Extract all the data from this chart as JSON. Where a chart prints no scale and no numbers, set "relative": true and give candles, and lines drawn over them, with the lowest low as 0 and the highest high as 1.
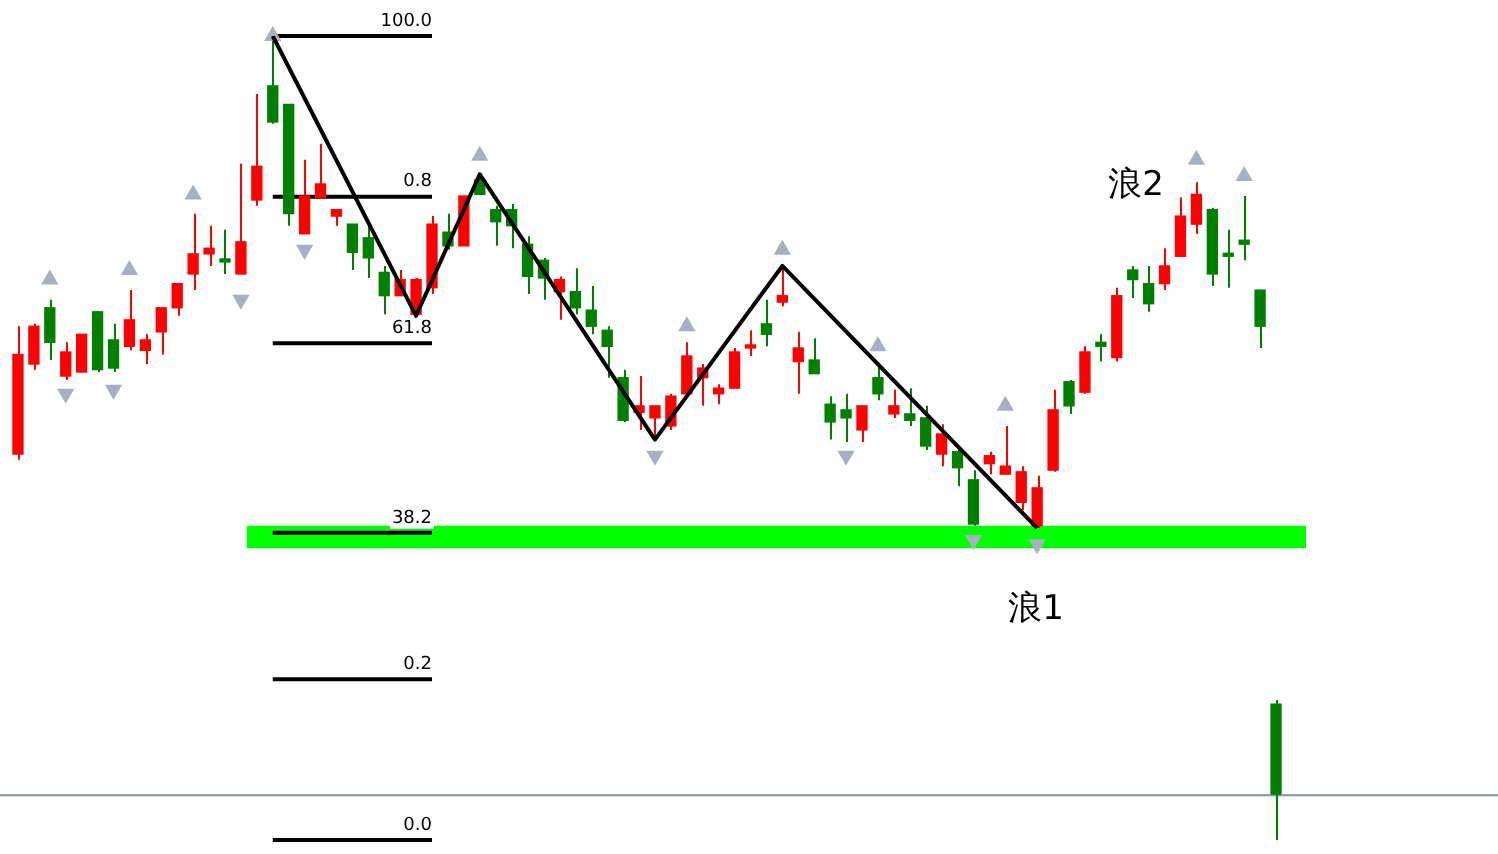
{
  "chart_data": {
    "type": "candlestick",
    "relative": true,
    "categories": [
      null,
      null,
      null,
      null,
      null,
      null,
      null,
      null,
      null,
      null,
      null,
      null,
      null,
      null,
      null,
      null,
      null,
      null,
      null,
      null,
      null,
      null,
      null,
      null,
      null,
      null,
      null,
      null,
      null,
      null,
      null,
      null,
      null,
      null,
      null,
      null,
      null,
      null,
      null,
      null,
      null,
      null,
      null,
      null,
      null,
      null,
      null,
      null,
      null,
      null,
      null,
      null,
      null,
      null,
      null,
      null,
      null,
      null,
      null,
      null,
      null,
      null,
      null,
      null,
      null,
      null,
      null,
      null,
      null,
      null,
      null,
      null,
      null,
      null,
      null,
      null,
      null,
      null,
      null,
      null
    ],
    "ohlc": [
      [
        0.48,
        0.639,
        0.473,
        0.604
      ],
      [
        0.592,
        0.642,
        0.585,
        0.639
      ],
      [
        0.662,
        0.672,
        0.597,
        0.619
      ],
      [
        0.577,
        0.619,
        0.572,
        0.607
      ],
      [
        0.582,
        0.629,
        0.582,
        0.629
      ],
      [
        0.657,
        0.657,
        0.582,
        0.585
      ],
      [
        0.622,
        0.642,
        0.582,
        0.587
      ],
      [
        0.614,
        0.684,
        0.609,
        0.647
      ],
      [
        0.609,
        0.629,
        0.592,
        0.622
      ],
      [
        0.632,
        0.662,
        0.604,
        0.662
      ],
      [
        0.662,
        0.692,
        0.652,
        0.692
      ],
      [
        0.704,
        0.779,
        0.684,
        0.729
      ],
      [
        0.729,
        0.764,
        0.714,
        0.736
      ],
      [
        0.721,
        0.759,
        0.704,
        0.719
      ],
      [
        0.704,
        0.841,
        0.704,
        0.744
      ],
      [
        0.796,
        0.928,
        0.789,
        0.838
      ],
      [
        0.938,
        1,
        0.891,
        0.893
      ],
      [
        0.915,
        0.915,
        0.764,
        0.779
      ],
      [
        0.754,
        0.846,
        0.754,
        0.801
      ],
      [
        0.799,
        0.866,
        0.799,
        0.816
      ],
      [
        0.776,
        0.784,
        0.764,
        0.784
      ],
      [
        0.766,
        0.766,
        0.709,
        0.731
      ],
      [
        0.749,
        0.764,
        0.699,
        0.724
      ],
      [
        0.706,
        0.714,
        0.654,
        0.677
      ],
      [
        0.677,
        0.709,
        0.677,
        0.697
      ],
      [
        0.654,
        0.699,
        0.652,
        0.697
      ],
      [
        0.687,
        0.776,
        0.679,
        0.766
      ],
      [
        0.756,
        0.779,
        0.734,
        0.739
      ],
      [
        0.739,
        0.801,
        0.739,
        0.801
      ],
      [
        0.821,
        0.828,
        0.803,
        0.803
      ],
      [
        0.784,
        0.789,
        0.739,
        0.769
      ],
      [
        0.784,
        0.791,
        0.736,
        0.764
      ],
      [
        0.741,
        0.751,
        0.679,
        0.701
      ],
      [
        0.721,
        0.724,
        0.672,
        0.699
      ],
      [
        0.682,
        0.701,
        0.647,
        0.697
      ],
      [
        0.682,
        0.711,
        0.654,
        0.662
      ],
      [
        0.659,
        0.689,
        0.629,
        0.639
      ],
      [
        0.634,
        0.639,
        0.575,
        0.614
      ],
      [
        0.575,
        0.585,
        0.52,
        0.522
      ],
      [
        0.532,
        0.577,
        0.51,
        0.54
      ],
      [
        0.525,
        0.54,
        0.498,
        0.54
      ],
      [
        0.515,
        0.555,
        0.51,
        0.552
      ],
      [
        0.555,
        0.619,
        0.552,
        0.602
      ],
      [
        0.575,
        0.592,
        0.54,
        0.587
      ],
      [
        0.555,
        0.567,
        0.542,
        0.562
      ],
      [
        0.562,
        0.612,
        0.562,
        0.607
      ],
      [
        0.612,
        0.634,
        0.602,
        0.614
      ],
      [
        0.642,
        0.672,
        0.614,
        0.629
      ],
      [
        0.669,
        0.714,
        0.664,
        0.677
      ],
      [
        0.595,
        0.632,
        0.555,
        0.612
      ],
      [
        0.597,
        0.624,
        0.58,
        0.58
      ],
      [
        0.542,
        0.552,
        0.498,
        0.52
      ],
      [
        0.535,
        0.555,
        0.495,
        0.525
      ],
      [
        0.51,
        0.54,
        0.495,
        0.54
      ],
      [
        0.575,
        0.59,
        0.547,
        0.555
      ],
      [
        0.53,
        0.56,
        0.525,
        0.54
      ],
      [
        0.53,
        0.562,
        0.515,
        0.522
      ],
      [
        0.525,
        0.54,
        0.485,
        0.49
      ],
      [
        0.48,
        0.517,
        0.465,
        0.505
      ],
      [
        0.483,
        0.49,
        0.44,
        0.463
      ],
      [
        0.448,
        0.46,
        0.391,
        0.393
      ],
      [
        0.468,
        0.483,
        0.455,
        0.478
      ],
      [
        0.455,
        0.515,
        0.455,
        0.465
      ],
      [
        0.42,
        0.465,
        0.41,
        0.458
      ],
      [
        0.391,
        0.453,
        0.388,
        0.438
      ],
      [
        0.46,
        0.56,
        0.458,
        0.535
      ],
      [
        0.57,
        0.572,
        0.53,
        0.54
      ],
      [
        0.557,
        0.614,
        0.555,
        0.607
      ],
      [
        0.619,
        0.629,
        0.595,
        0.614
      ],
      [
        0.6,
        0.687,
        0.595,
        0.677
      ],
      [
        0.709,
        0.714,
        0.674,
        0.697
      ],
      [
        0.692,
        0.714,
        0.657,
        0.667
      ],
      [
        0.692,
        0.736,
        0.684,
        0.714
      ],
      [
        0.726,
        0.799,
        0.726,
        0.776
      ],
      [
        0.766,
        0.818,
        0.754,
        0.803
      ],
      [
        0.784,
        0.786,
        0.689,
        0.704
      ],
      [
        0.729,
        0.759,
        0.687,
        0.726
      ],
      [
        0.746,
        0.801,
        0.721,
        0.741
      ],
      [
        0.684,
        0.684,
        0.612,
        0.639
      ],
      [
        0.169,
        0.174,
        0,
        0.057
      ]
    ],
    "colors": [
      "#ff0000",
      "#ff0000",
      "#008000",
      "#ff0000",
      "#ff0000",
      "#008000",
      "#008000",
      "#ff0000",
      "#ff0000",
      "#ff0000",
      "#ff0000",
      "#ff0000",
      "#ff0000",
      "#008000",
      "#ff0000",
      "#ff0000",
      "#008000",
      "#008000",
      "#ff0000",
      "#ff0000",
      "#ff0000",
      "#008000",
      "#008000",
      "#008000",
      "#ff0000",
      "#ff0000",
      "#ff0000",
      "#008000",
      "#ff0000",
      "#008000",
      "#008000",
      "#008000",
      "#008000",
      "#008000",
      "#ff0000",
      "#008000",
      "#008000",
      "#008000",
      "#008000",
      "#ff0000",
      "#ff0000",
      "#ff0000",
      "#ff0000",
      "#ff0000",
      "#ff0000",
      "#ff0000",
      "#ff0000",
      "#008000",
      "#ff0000",
      "#ff0000",
      "#008000",
      "#008000",
      "#008000",
      "#ff0000",
      "#008000",
      "#ff0000",
      "#008000",
      "#008000",
      "#ff0000",
      "#008000",
      "#008000",
      "#ff0000",
      "#ff0000",
      "#ff0000",
      "#ff0000",
      "#ff0000",
      "#008000",
      "#ff0000",
      "#008000",
      "#ff0000",
      "#008000",
      "#008000",
      "#ff0000",
      "#ff0000",
      "#ff0000",
      "#008000",
      "#008000",
      "#008000",
      "#008000",
      "#008000"
    ],
    "series": [
      {
        "type": "line",
        "color": "#000000",
        "values": [
          null,
          null,
          null,
          null,
          null,
          null,
          null,
          null,
          null,
          null,
          null,
          null,
          null,
          null,
          null,
          null,
          1,
          null,
          null,
          null,
          null,
          null,
          null,
          null,
          null,
          0.652,
          null,
          null,
          null,
          0.828,
          null,
          null,
          null,
          null,
          null,
          null,
          null,
          null,
          null,
          null,
          0.498,
          null,
          null,
          null,
          null,
          null,
          null,
          null,
          0.714,
          null,
          null,
          null,
          null,
          null,
          null,
          null,
          null,
          null,
          null,
          null,
          null,
          null,
          null,
          null,
          0.388,
          null,
          null,
          null,
          null,
          null,
          null,
          null,
          null,
          null,
          null,
          null,
          null,
          null,
          null,
          null
        ]
      },
      {
        "type": "scatter",
        "marker": "triangle",
        "color": "#a8b0c0",
        "values": [
          null,
          null,
          0.697,
          null,
          null,
          null,
          null,
          0.709,
          null,
          null,
          null,
          0.803,
          null,
          null,
          null,
          null,
          1,
          null,
          null,
          null,
          null,
          null,
          null,
          null,
          null,
          null,
          null,
          null,
          null,
          0.851,
          null,
          null,
          null,
          null,
          null,
          null,
          null,
          null,
          null,
          null,
          null,
          null,
          0.639,
          null,
          null,
          null,
          null,
          null,
          0.734,
          null,
          null,
          null,
          null,
          null,
          0.614,
          null,
          null,
          null,
          null,
          null,
          null,
          null,
          0.54,
          null,
          null,
          null,
          null,
          null,
          null,
          null,
          null,
          null,
          null,
          null,
          0.846,
          null,
          null,
          0.826,
          null,
          null
        ]
      },
      {
        "type": "scatter",
        "marker": "triangle",
        "color": "#a8b0c0",
        "values": [
          null,
          null,
          null,
          0.555,
          null,
          null,
          0.56,
          null,
          null,
          null,
          null,
          null,
          null,
          null,
          0.672,
          null,
          null,
          null,
          0.734,
          null,
          null,
          null,
          null,
          null,
          null,
          null,
          null,
          null,
          null,
          null,
          null,
          null,
          null,
          null,
          null,
          null,
          null,
          null,
          null,
          null,
          0.478,
          null,
          null,
          null,
          null,
          null,
          null,
          null,
          null,
          null,
          null,
          null,
          0.478,
          null,
          null,
          null,
          null,
          null,
          null,
          null,
          0.373,
          null,
          null,
          null,
          0.368,
          null,
          null,
          null,
          null,
          null,
          null,
          null,
          null,
          null,
          null,
          null,
          null,
          null,
          null,
          null
        ]
      }
    ],
    "ref_lines": [
      {
        "axis": "y",
        "value": 1,
        "label": "100.0"
      },
      {
        "axis": "y",
        "value": 0.8,
        "label": "0.8"
      },
      {
        "axis": "y",
        "value": 0.618,
        "label": "61.8"
      },
      {
        "axis": "y",
        "value": 0.382,
        "label": "38.2"
      },
      {
        "axis": "y",
        "value": 0.2,
        "label": "0.2"
      },
      {
        "axis": "y",
        "value": 0,
        "label": "0.0"
      },
      {
        "axis": "y",
        "value": 0.057,
        "color": "#8090a0"
      }
    ],
    "bands": [
      {
        "axis": "y",
        "from": 0.363,
        "to": 0.391,
        "color": "#00ff00"
      }
    ],
    "annotations": [
      "浪2",
      "浪1"
    ]
  }
}
